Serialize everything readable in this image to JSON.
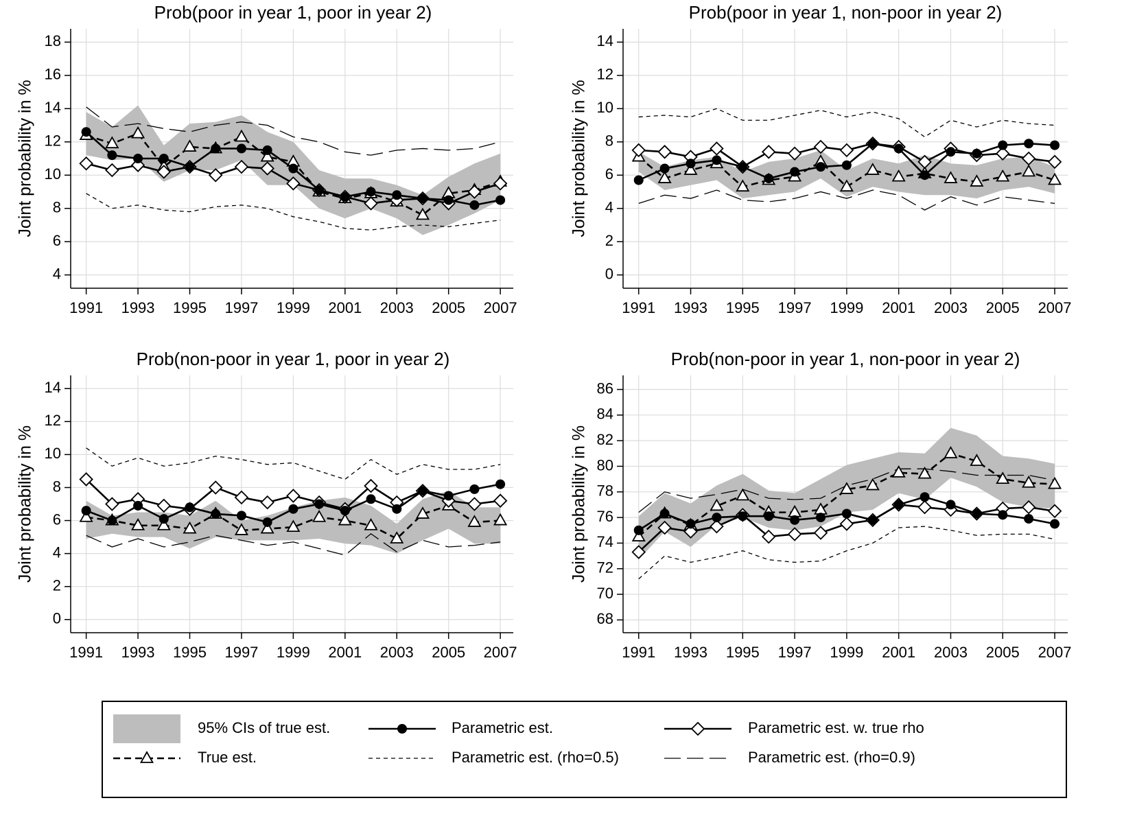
{
  "chart_data": [
    {
      "type": "line",
      "title": "Prob(poor in year 1, poor in year 2)",
      "ylabel": "Joint probability in %",
      "x": [
        1991,
        1992,
        1993,
        1994,
        1995,
        1996,
        1997,
        1998,
        1999,
        2000,
        2001,
        2002,
        2003,
        2004,
        2005,
        2006,
        2007
      ],
      "xlim": [
        1990.4,
        2007.5
      ],
      "xticks": [
        1991,
        1993,
        1995,
        1997,
        1999,
        2001,
        2003,
        2005,
        2007
      ],
      "ylim": [
        3.2,
        18.8
      ],
      "yticks": [
        4,
        6,
        8,
        10,
        12,
        14,
        16,
        18
      ],
      "grid": true,
      "series": [
        {
          "name": "95% CIs of true est.",
          "type": "band",
          "color": "#bdbdbd",
          "lower": [
            11.2,
            10.9,
            11.0,
            9.6,
            10.3,
            10.3,
            10.9,
            9.4,
            9.4,
            8.0,
            7.4,
            8.0,
            7.4,
            6.4,
            7.0,
            7.7,
            8.5
          ],
          "upper": [
            13.8,
            12.9,
            14.2,
            11.8,
            13.1,
            13.2,
            13.6,
            12.6,
            12.0,
            10.3,
            9.8,
            9.8,
            9.4,
            8.8,
            9.9,
            10.7,
            11.3
          ]
        },
        {
          "name": "Parametric est.",
          "color": "#000000",
          "marker": "circle",
          "dash": "solid",
          "values": [
            12.6,
            11.2,
            11.0,
            11.0,
            10.5,
            11.6,
            11.6,
            11.5,
            10.4,
            9.1,
            8.7,
            9.0,
            8.8,
            8.6,
            8.5,
            8.2,
            8.5
          ]
        },
        {
          "name": "Parametric est. w. true rho",
          "color": "#000000",
          "marker": "diamond",
          "dash": "solid",
          "values": [
            10.7,
            10.3,
            10.6,
            10.2,
            10.5,
            10.0,
            10.5,
            10.4,
            9.5,
            9.1,
            8.7,
            8.3,
            8.5,
            8.6,
            8.3,
            9.0,
            9.5
          ]
        },
        {
          "name": "True est.",
          "color": "#000000",
          "marker": "triangle",
          "dash": "dash",
          "values": [
            12.4,
            11.9,
            12.5,
            10.5,
            11.7,
            11.6,
            12.3,
            11.1,
            10.8,
            9.0,
            8.6,
            8.9,
            8.4,
            7.6,
            8.9,
            9.1,
            9.6
          ]
        },
        {
          "name": "Parametric est. (rho=0.5)",
          "color": "#000000",
          "marker": "none",
          "dash": "short",
          "values": [
            8.9,
            8.0,
            8.2,
            7.9,
            7.8,
            8.1,
            8.2,
            8.0,
            7.5,
            7.2,
            6.8,
            6.7,
            6.9,
            7.0,
            6.9,
            7.1,
            7.3
          ]
        },
        {
          "name": "Parametric est. (rho=0.9)",
          "color": "#000000",
          "marker": "none",
          "dash": "long",
          "values": [
            14.1,
            12.9,
            13.1,
            12.8,
            12.6,
            13.0,
            13.2,
            13.0,
            12.3,
            12.0,
            11.4,
            11.2,
            11.5,
            11.6,
            11.5,
            11.6,
            12.0
          ]
        }
      ]
    },
    {
      "type": "line",
      "title": "Prob(poor in year 1, non-poor in year 2)",
      "ylabel": "Joint probability in %",
      "x": [
        1991,
        1992,
        1993,
        1994,
        1995,
        1996,
        1997,
        1998,
        1999,
        2000,
        2001,
        2002,
        2003,
        2004,
        2005,
        2006,
        2007
      ],
      "xlim": [
        1990.4,
        2007.5
      ],
      "xticks": [
        1991,
        1993,
        1995,
        1997,
        1999,
        2001,
        2003,
        2005,
        2007
      ],
      "ylim": [
        -0.8,
        14.8
      ],
      "yticks": [
        0,
        2,
        4,
        6,
        8,
        10,
        12,
        14
      ],
      "grid": true,
      "series": [
        {
          "lower": [
            6.2,
            5.1,
            5.4,
            5.7,
            4.6,
            4.8,
            5.0,
            5.8,
            4.7,
            5.3,
            5.0,
            4.8,
            4.8,
            4.6,
            5.1,
            5.3,
            4.9
          ],
          "upper": [
            7.4,
            6.5,
            6.9,
            7.1,
            6.2,
            6.8,
            7.0,
            7.5,
            6.3,
            7.0,
            6.7,
            7.2,
            6.7,
            6.6,
            7.0,
            7.1,
            6.5
          ]
        },
        {
          "values": [
            5.7,
            6.4,
            6.7,
            6.9,
            6.5,
            5.8,
            6.2,
            6.5,
            6.6,
            7.9,
            7.6,
            6.0,
            7.4,
            7.3,
            7.8,
            7.9,
            7.8
          ]
        },
        {
          "values": [
            7.5,
            7.4,
            7.1,
            7.6,
            6.5,
            7.4,
            7.3,
            7.7,
            7.5,
            7.9,
            7.7,
            6.8,
            7.6,
            7.2,
            7.3,
            7.0,
            6.8
          ]
        },
        {
          "values": [
            7.1,
            5.8,
            6.3,
            6.7,
            5.3,
            5.7,
            5.9,
            6.8,
            5.3,
            6.3,
            5.9,
            6.1,
            5.8,
            5.6,
            5.9,
            6.2,
            5.7
          ]
        },
        {
          "values": [
            9.5,
            9.6,
            9.5,
            10.0,
            9.3,
            9.3,
            9.6,
            9.9,
            9.5,
            9.8,
            9.4,
            8.3,
            9.3,
            8.9,
            9.3,
            9.1,
            9.0
          ]
        },
        {
          "values": [
            4.3,
            4.8,
            4.6,
            5.1,
            4.5,
            4.4,
            4.6,
            5.0,
            4.6,
            5.1,
            4.8,
            3.9,
            4.7,
            4.2,
            4.7,
            4.5,
            4.3
          ]
        }
      ]
    },
    {
      "type": "line",
      "title": "Prob(non-poor in year 1, poor in year 2)",
      "ylabel": "Joint probability in %",
      "x": [
        1991,
        1992,
        1993,
        1994,
        1995,
        1996,
        1997,
        1998,
        1999,
        2000,
        2001,
        2002,
        2003,
        2004,
        2005,
        2006,
        2007
      ],
      "xlim": [
        1990.4,
        2007.5
      ],
      "xticks": [
        1991,
        1993,
        1995,
        1997,
        1999,
        2001,
        2003,
        2005,
        2007
      ],
      "ylim": [
        -0.8,
        14.8
      ],
      "yticks": [
        0,
        2,
        4,
        6,
        8,
        10,
        12,
        14
      ],
      "grid": true,
      "series": [
        {
          "lower": [
            4.9,
            5.2,
            5.0,
            5.0,
            4.3,
            5.0,
            4.8,
            4.8,
            4.8,
            4.9,
            4.6,
            4.5,
            4.0,
            4.8,
            5.5,
            4.6,
            4.6
          ],
          "upper": [
            7.2,
            6.3,
            6.5,
            6.5,
            6.3,
            7.2,
            6.0,
            6.3,
            6.8,
            7.2,
            7.4,
            6.9,
            5.8,
            7.3,
            7.8,
            6.8,
            6.8
          ]
        },
        {
          "values": [
            6.6,
            6.0,
            6.9,
            6.1,
            6.8,
            6.4,
            6.3,
            5.9,
            6.7,
            7.0,
            6.6,
            7.3,
            6.7,
            7.8,
            7.5,
            7.9,
            8.2
          ]
        },
        {
          "values": [
            8.5,
            7.0,
            7.3,
            6.9,
            6.7,
            8.0,
            7.4,
            7.1,
            7.5,
            7.1,
            6.7,
            8.1,
            7.1,
            7.8,
            7.2,
            7.0,
            7.2
          ]
        },
        {
          "values": [
            6.2,
            6.0,
            5.7,
            5.7,
            5.5,
            6.4,
            5.4,
            5.5,
            5.6,
            6.2,
            6.0,
            5.7,
            4.9,
            6.4,
            6.9,
            5.9,
            6.0
          ]
        },
        {
          "values": [
            10.4,
            9.3,
            9.8,
            9.3,
            9.5,
            9.9,
            9.7,
            9.4,
            9.5,
            9.0,
            8.5,
            9.7,
            8.8,
            9.4,
            9.1,
            9.1,
            9.4
          ]
        },
        {
          "values": [
            5.1,
            4.4,
            4.9,
            4.4,
            4.7,
            5.1,
            4.8,
            4.5,
            4.7,
            4.3,
            3.9,
            5.2,
            4.1,
            4.8,
            4.4,
            4.5,
            4.7
          ]
        }
      ]
    },
    {
      "type": "line",
      "title": "Prob(non-poor in year 1, non-poor in year 2)",
      "ylabel": "Joint probability in %",
      "x": [
        1991,
        1992,
        1993,
        1994,
        1995,
        1996,
        1997,
        1998,
        1999,
        2000,
        2001,
        2002,
        2003,
        2004,
        2005,
        2006,
        2007
      ],
      "xlim": [
        1990.4,
        2007.5
      ],
      "xticks": [
        1991,
        1993,
        1995,
        1997,
        1999,
        2001,
        2003,
        2005,
        2007
      ],
      "ylim": [
        67,
        87.1
      ],
      "yticks": [
        68,
        70,
        72,
        74,
        76,
        78,
        80,
        82,
        84,
        86
      ],
      "grid": true,
      "series": [
        {
          "lower": [
            72.7,
            74.9,
            73.7,
            75.4,
            76.0,
            75.2,
            75.0,
            75.3,
            76.4,
            76.6,
            77.9,
            77.4,
            79.1,
            78.4,
            77.2,
            76.8,
            76.7
          ],
          "upper": [
            76.1,
            77.9,
            77.1,
            78.5,
            79.4,
            78.1,
            77.9,
            79.0,
            80.1,
            80.6,
            81.1,
            81.0,
            83.0,
            82.4,
            80.8,
            80.6,
            80.2
          ]
        },
        {
          "values": [
            75.0,
            76.3,
            75.5,
            76.0,
            76.1,
            76.1,
            75.8,
            76.0,
            76.3,
            75.8,
            77.0,
            77.6,
            77.0,
            76.3,
            76.2,
            75.9,
            75.5
          ]
        },
        {
          "values": [
            73.3,
            75.2,
            74.9,
            75.3,
            76.2,
            74.5,
            74.7,
            74.8,
            75.5,
            75.8,
            77.0,
            76.8,
            76.6,
            76.3,
            76.7,
            76.8,
            76.5
          ]
        },
        {
          "values": [
            74.5,
            76.3,
            75.4,
            76.9,
            77.7,
            76.4,
            76.4,
            76.6,
            78.2,
            78.5,
            79.5,
            79.4,
            81.0,
            80.4,
            79.0,
            78.7,
            78.6
          ]
        },
        {
          "values": [
            71.2,
            73.0,
            72.5,
            72.9,
            73.4,
            72.7,
            72.5,
            72.6,
            73.4,
            74.0,
            75.2,
            75.3,
            75.0,
            74.6,
            74.7,
            74.7,
            74.3
          ]
        },
        {
          "values": [
            76.4,
            78.0,
            77.5,
            77.8,
            78.2,
            77.5,
            77.4,
            77.5,
            78.5,
            79.0,
            79.8,
            79.8,
            79.6,
            79.3,
            79.3,
            79.3,
            78.9
          ]
        }
      ]
    }
  ]
}
